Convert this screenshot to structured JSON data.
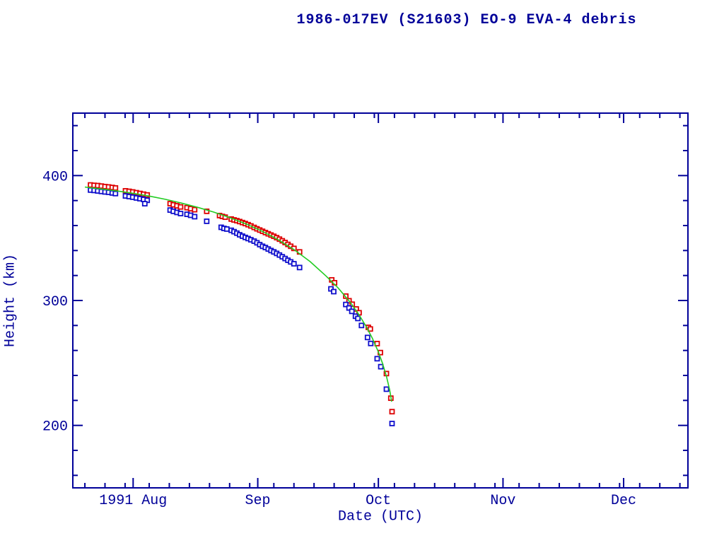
{
  "title": "1986-017EV (S21603) EO-9 EVA-4 debris",
  "colors": {
    "axis": "#000099",
    "text": "#000099",
    "apogee": "#dd0000",
    "perigee": "#0f0fcc",
    "fit": "#22cc22",
    "background": "#ffffff"
  },
  "chart_data": {
    "type": "scatter",
    "title": "1986-017EV (S21603) EO-9 EVA-4 debris",
    "xlabel": "Date (UTC)",
    "ylabel": "Height (km)",
    "x_unit": "days since 1991 Aug 1",
    "xlim_days": [
      -15,
      138
    ],
    "ylim": [
      150,
      450
    ],
    "grid": false,
    "legend": "none",
    "x_major_ticks": [
      {
        "label": "1991 Aug",
        "day": 0
      },
      {
        "label": "Sep",
        "day": 31
      },
      {
        "label": "Oct",
        "day": 61
      },
      {
        "label": "Nov",
        "day": 92
      },
      {
        "label": "Dec",
        "day": 122
      }
    ],
    "x_minor_tick_days": [
      -12,
      -7,
      -2,
      4,
      9,
      14,
      19,
      24,
      29,
      35,
      40,
      45,
      50,
      55,
      60,
      65,
      70,
      75,
      80,
      85,
      90,
      96,
      101,
      106,
      111,
      116,
      121,
      126,
      131,
      136
    ],
    "y_major_ticks": [
      {
        "label": "200",
        "km": 200
      },
      {
        "label": "300",
        "km": 300
      },
      {
        "label": "400",
        "km": 400
      }
    ],
    "y_minor_tick_km": [
      160,
      180,
      220,
      240,
      260,
      280,
      320,
      340,
      360,
      380,
      420,
      440
    ],
    "series": [
      {
        "name": "apogee-height",
        "type": "scatter",
        "marker": "open-square",
        "color": "#dd0000",
        "points": [
          [
            -10.6,
            392.5
          ],
          [
            -9.7,
            392.2
          ],
          [
            -8.8,
            392.0
          ],
          [
            -7.9,
            391.6
          ],
          [
            -7.0,
            391.2
          ],
          [
            -6.1,
            390.9
          ],
          [
            -5.2,
            390.5
          ],
          [
            -4.4,
            390.1
          ],
          [
            -1.9,
            387.8
          ],
          [
            -1.0,
            387.4
          ],
          [
            -0.1,
            386.9
          ],
          [
            0.8,
            386.3
          ],
          [
            1.7,
            385.7
          ],
          [
            2.6,
            385.1
          ],
          [
            3.5,
            384.5
          ],
          [
            9.2,
            377.5
          ],
          [
            10.0,
            376.6
          ],
          [
            10.9,
            375.8
          ],
          [
            11.8,
            374.9
          ],
          [
            13.4,
            374.3
          ],
          [
            14.3,
            373.5
          ],
          [
            15.3,
            372.7
          ],
          [
            18.3,
            371.4
          ],
          [
            21.5,
            368.0
          ],
          [
            22.2,
            367.3
          ],
          [
            22.9,
            366.7
          ],
          [
            24.4,
            365.2
          ],
          [
            25.1,
            364.5
          ],
          [
            25.8,
            363.9
          ],
          [
            26.5,
            363.2
          ],
          [
            27.2,
            362.4
          ],
          [
            27.9,
            361.6
          ],
          [
            28.6,
            360.7
          ],
          [
            29.3,
            359.7
          ],
          [
            30.1,
            358.5
          ],
          [
            30.8,
            357.4
          ],
          [
            31.5,
            356.4
          ],
          [
            32.2,
            355.4
          ],
          [
            32.9,
            354.4
          ],
          [
            33.6,
            353.4
          ],
          [
            34.3,
            352.4
          ],
          [
            35.0,
            351.4
          ],
          [
            35.7,
            350.3
          ],
          [
            36.4,
            349.1
          ],
          [
            37.1,
            347.8
          ],
          [
            37.8,
            346.4
          ],
          [
            38.5,
            344.9
          ],
          [
            39.2,
            343.4
          ],
          [
            40.0,
            341.7
          ],
          [
            41.4,
            338.9
          ],
          [
            49.4,
            316.5
          ],
          [
            50.1,
            314.2
          ],
          [
            52.9,
            303.5
          ],
          [
            53.7,
            299.8
          ],
          [
            54.5,
            297.0
          ],
          [
            55.5,
            293.2
          ],
          [
            56.2,
            290.2
          ],
          [
            58.5,
            278.5
          ],
          [
            59.0,
            277.2
          ],
          [
            60.7,
            265.5
          ],
          [
            61.5,
            258.3
          ],
          [
            63.0,
            241.5
          ],
          [
            64.1,
            221.8
          ],
          [
            64.4,
            211.0
          ]
        ]
      },
      {
        "name": "perigee-height",
        "type": "scatter",
        "marker": "open-square",
        "color": "#0f0fcc",
        "points": [
          [
            -10.6,
            388.4
          ],
          [
            -9.7,
            388.1
          ],
          [
            -8.8,
            387.7
          ],
          [
            -7.9,
            387.3
          ],
          [
            -7.0,
            386.9
          ],
          [
            -6.1,
            386.6
          ],
          [
            -5.2,
            386.1
          ],
          [
            -4.4,
            385.6
          ],
          [
            -1.9,
            383.7
          ],
          [
            -1.0,
            383.2
          ],
          [
            -0.1,
            382.7
          ],
          [
            0.8,
            382.1
          ],
          [
            1.7,
            381.5
          ],
          [
            2.6,
            380.9
          ],
          [
            3.5,
            380.2
          ],
          [
            2.9,
            377.5
          ],
          [
            9.2,
            372.4
          ],
          [
            10.0,
            371.4
          ],
          [
            10.9,
            370.5
          ],
          [
            11.8,
            369.6
          ],
          [
            13.4,
            369.0
          ],
          [
            14.3,
            368.2
          ],
          [
            15.3,
            367.1
          ],
          [
            18.3,
            363.4
          ],
          [
            21.9,
            358.6
          ],
          [
            22.6,
            357.7
          ],
          [
            23.3,
            357.2
          ],
          [
            24.4,
            356.2
          ],
          [
            25.1,
            355.1
          ],
          [
            25.8,
            353.9
          ],
          [
            26.5,
            352.6
          ],
          [
            27.2,
            351.5
          ],
          [
            27.9,
            350.5
          ],
          [
            28.6,
            349.6
          ],
          [
            29.3,
            348.6
          ],
          [
            30.1,
            347.5
          ],
          [
            30.8,
            346.2
          ],
          [
            31.5,
            344.7
          ],
          [
            32.2,
            343.4
          ],
          [
            32.9,
            342.4
          ],
          [
            33.6,
            341.2
          ],
          [
            34.3,
            340.0
          ],
          [
            35.0,
            338.9
          ],
          [
            35.7,
            337.7
          ],
          [
            36.4,
            336.4
          ],
          [
            37.1,
            335.0
          ],
          [
            37.8,
            333.6
          ],
          [
            38.5,
            332.2
          ],
          [
            39.2,
            330.9
          ],
          [
            40.0,
            329.4
          ],
          [
            41.4,
            326.4
          ],
          [
            49.2,
            309.3
          ],
          [
            49.9,
            307.1
          ],
          [
            52.9,
            296.8
          ],
          [
            53.7,
            294.0
          ],
          [
            54.4,
            291.3
          ],
          [
            55.3,
            287.4
          ],
          [
            55.9,
            285.6
          ],
          [
            56.8,
            280.0
          ],
          [
            58.3,
            270.4
          ],
          [
            59.1,
            265.6
          ],
          [
            60.7,
            253.4
          ],
          [
            61.6,
            247.0
          ],
          [
            63.0,
            229.0
          ],
          [
            64.4,
            201.5
          ]
        ]
      },
      {
        "name": "decay-fit",
        "type": "line",
        "color": "#22cc22",
        "points": [
          [
            -12,
            390.8
          ],
          [
            -8,
            389.3
          ],
          [
            -4,
            387.7
          ],
          [
            0,
            385.8
          ],
          [
            4,
            383.6
          ],
          [
            8,
            381.0
          ],
          [
            12,
            378.0
          ],
          [
            16,
            374.6
          ],
          [
            20,
            370.8
          ],
          [
            24,
            366.4
          ],
          [
            28,
            361.4
          ],
          [
            32,
            355.6
          ],
          [
            36,
            348.8
          ],
          [
            40,
            340.8
          ],
          [
            44,
            331.2
          ],
          [
            48,
            319.6
          ],
          [
            51,
            310.0
          ],
          [
            54,
            298.5
          ],
          [
            56,
            289.5
          ],
          [
            58,
            279.0
          ],
          [
            59.5,
            269.8
          ],
          [
            61,
            258.8
          ],
          [
            62,
            250.0
          ],
          [
            63,
            239.5
          ],
          [
            63.8,
            228.5
          ],
          [
            64.3,
            219.0
          ]
        ]
      }
    ]
  }
}
